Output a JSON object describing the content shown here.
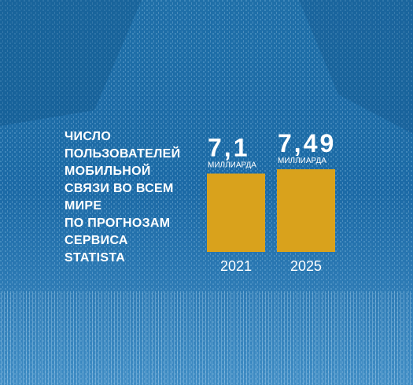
{
  "chart_data": {
    "type": "bar",
    "title": [
      "ЧИСЛО",
      "ПОЛЬЗОВАТЕЛЕЙ",
      "МОБИЛЬНОЙ",
      "СВЯЗИ ВО ВСЕМ",
      "МИРЕ",
      "ПО ПРОГНОЗАМ",
      "СЕРВИСА",
      "STATISTA"
    ],
    "categories": [
      "2021",
      "2025"
    ],
    "values": [
      7.1,
      7.49
    ],
    "value_labels": [
      "7,1",
      "7,49"
    ],
    "unit_labels": [
      "МИЛЛИАРДА",
      "МИЛЛИАРДА"
    ],
    "color": "#d9a21c"
  }
}
